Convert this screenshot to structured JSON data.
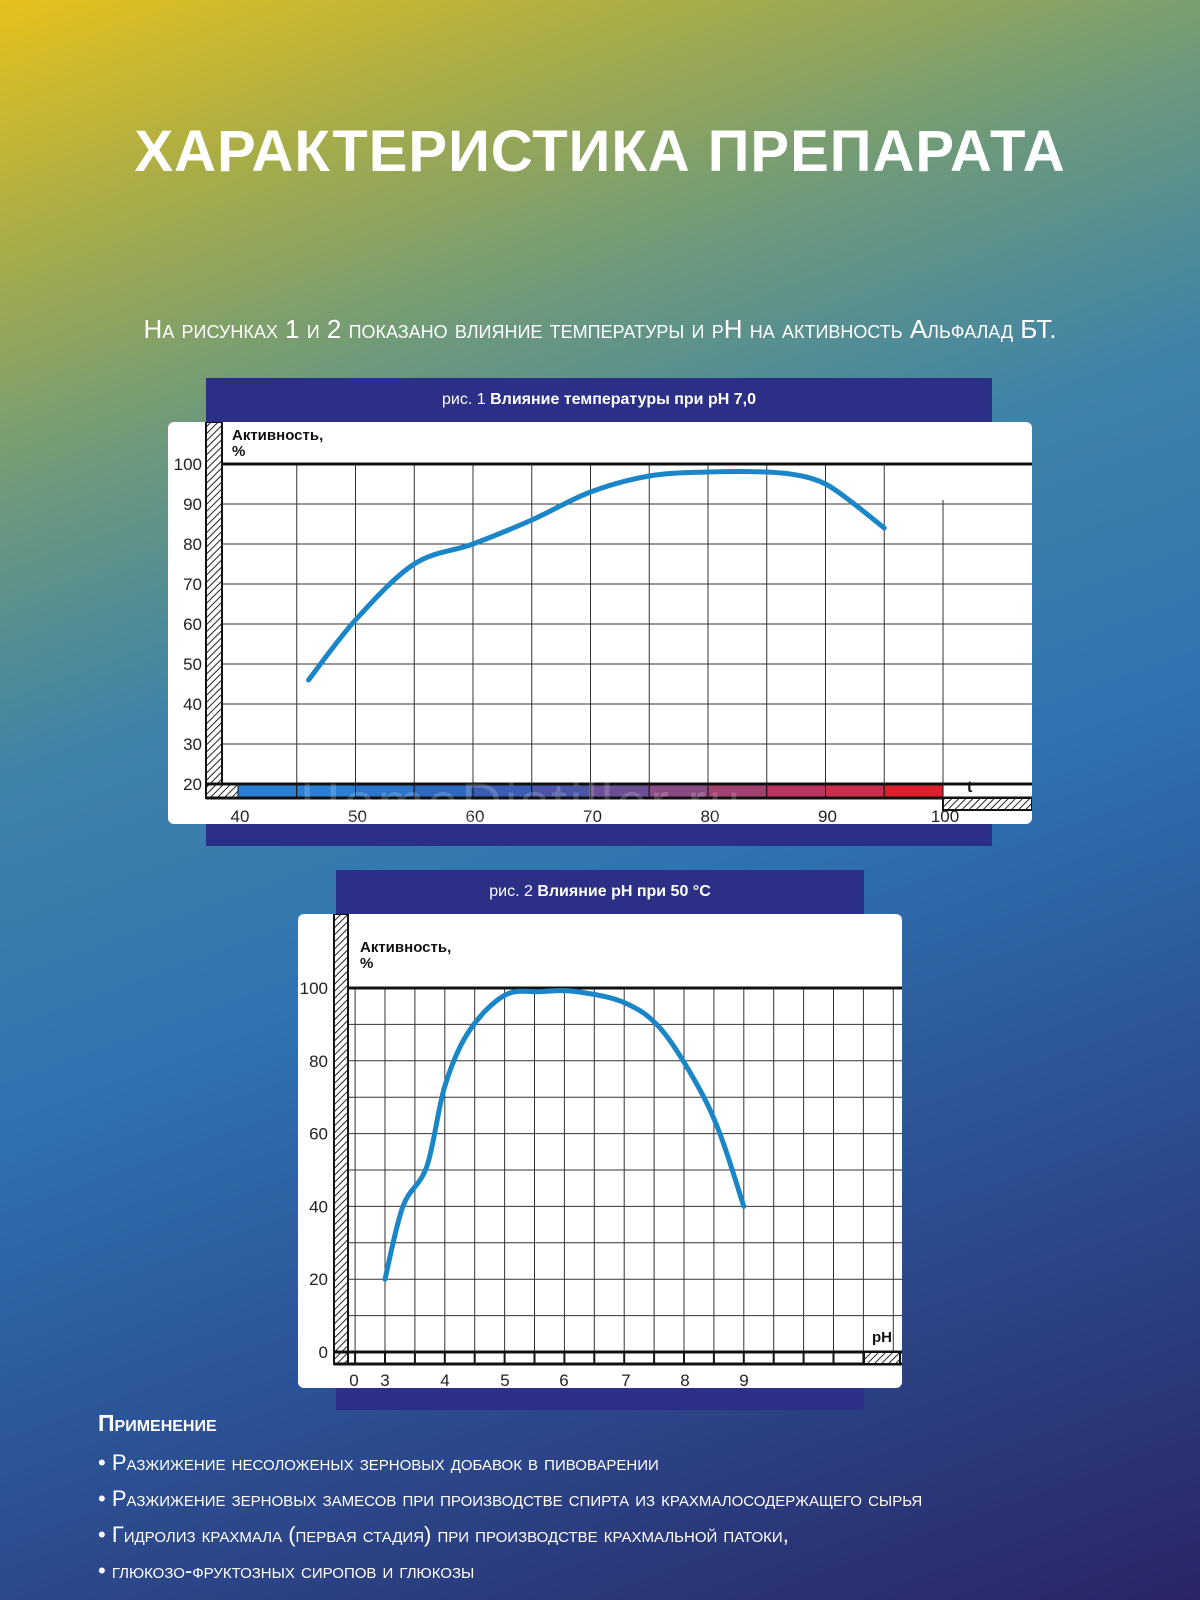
{
  "page": {
    "title": "ХАРАКТЕРИСТИКА ПРЕПАРАТА",
    "subtitle": "На рисунках 1 и 2 показано влияние температуры и рН на активность Альфалад БТ.",
    "watermark": "HomeDistiller.ru"
  },
  "figures": [
    {
      "caption_prefix": "рис. 1",
      "caption_bold": "Влияние температуры при рН 7,0",
      "ylabel_line1": "Активность,",
      "ylabel_line2": "%",
      "xlabel": "t",
      "yticks": [
        "20",
        "30",
        "40",
        "50",
        "60",
        "70",
        "80",
        "90",
        "100"
      ],
      "xticks": [
        "40",
        "50",
        "60",
        "70",
        "80",
        "90",
        "100"
      ],
      "colors": {
        "line": "#1a86c8",
        "scale": [
          "#2a7fd6",
          "#2a7fd6",
          "#2a74cc",
          "#2e68c0",
          "#3a5cb4",
          "#4b55a8",
          "#6b4f94",
          "#8a4a82",
          "#a24070",
          "#bb3560",
          "#cc2e4e",
          "#e01f2e"
        ]
      }
    },
    {
      "caption_prefix": "рис. 2",
      "caption_bold": "Влияние рН при 50 °С",
      "ylabel_line1": "Активность,",
      "ylabel_line2": "%",
      "xlabel": "рН",
      "yticks": [
        "0",
        "20",
        "40",
        "60",
        "80",
        "100"
      ],
      "xticks": [
        "0",
        "3",
        "4",
        "5",
        "6",
        "7",
        "8",
        "9"
      ],
      "colors": {
        "line": "#1a86c8"
      }
    }
  ],
  "chart_data": [
    {
      "type": "line",
      "title": "рис. 1 Влияние температуры при рН 7,0",
      "xlabel": "t",
      "ylabel": "Активность, %",
      "xlim": [
        40,
        100
      ],
      "ylim": [
        20,
        100
      ],
      "grid": true,
      "series": [
        {
          "x": [
            46,
            50,
            55,
            60,
            65,
            70,
            75,
            80,
            85,
            88,
            90,
            92,
            95
          ],
          "values": [
            46,
            61,
            75,
            80,
            86,
            93,
            97,
            98,
            98,
            97,
            95,
            91,
            84
          ]
        }
      ]
    },
    {
      "type": "line",
      "title": "рис. 2 Влияние рН при 50 °С",
      "xlabel": "рН",
      "ylabel": "Активность, %",
      "xlim": [
        2.4,
        11
      ],
      "ylim": [
        0,
        100
      ],
      "grid": true,
      "series": [
        {
          "x": [
            3,
            3.3,
            3.7,
            4,
            4.4,
            5,
            5.6,
            6.2,
            7,
            7.6,
            8.2,
            8.6,
            9
          ],
          "values": [
            20,
            40,
            51,
            73,
            88,
            98,
            99,
            99,
            96,
            89,
            74,
            60,
            40
          ]
        }
      ]
    }
  ],
  "application": {
    "title": "Применение",
    "items": [
      "Разжижение несоложеных зерновых добавок в пивоварении",
      "Разжижение зерновых замесов при производстве спирта из крахмалосодержащего сырья",
      "Гидролиз крахмала (первая стадия) при производстве крахмальной патоки,",
      "глюкозо-фруктозных сиропов и глюкозы"
    ]
  }
}
